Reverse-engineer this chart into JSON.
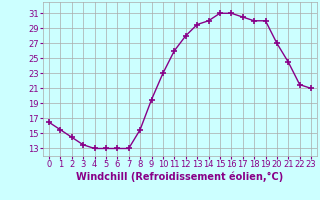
{
  "x": [
    0,
    1,
    2,
    3,
    4,
    5,
    6,
    7,
    8,
    9,
    10,
    11,
    12,
    13,
    14,
    15,
    16,
    17,
    18,
    19,
    20,
    21,
    22,
    23
  ],
  "y": [
    16.5,
    15.5,
    14.5,
    13.5,
    13.0,
    13.0,
    13.0,
    13.0,
    15.5,
    19.5,
    23.0,
    26.0,
    28.0,
    29.5,
    30.0,
    31.0,
    31.0,
    30.5,
    30.0,
    30.0,
    27.0,
    24.5,
    21.5,
    21.0
  ],
  "line_color": "#880088",
  "marker": "+",
  "marker_size": 5,
  "marker_lw": 1.2,
  "bg_color": "#ccffff",
  "grid_color": "#aaaaaa",
  "xlabel": "Windchill (Refroidissement éolien,°C)",
  "xlabel_color": "#880088",
  "ylabel_ticks": [
    13,
    15,
    17,
    19,
    21,
    23,
    25,
    27,
    29,
    31
  ],
  "xtick_labels": [
    "0",
    "1",
    "2",
    "3",
    "4",
    "5",
    "6",
    "7",
    "8",
    "9",
    "10",
    "11",
    "12",
    "13",
    "14",
    "15",
    "16",
    "17",
    "18",
    "19",
    "20",
    "21",
    "22",
    "23"
  ],
  "ylim": [
    12.0,
    32.5
  ],
  "xlim": [
    -0.5,
    23.5
  ],
  "tick_color": "#880088",
  "tick_fontsize": 6.0,
  "xlabel_fontsize": 7.0,
  "line_width": 1.0
}
